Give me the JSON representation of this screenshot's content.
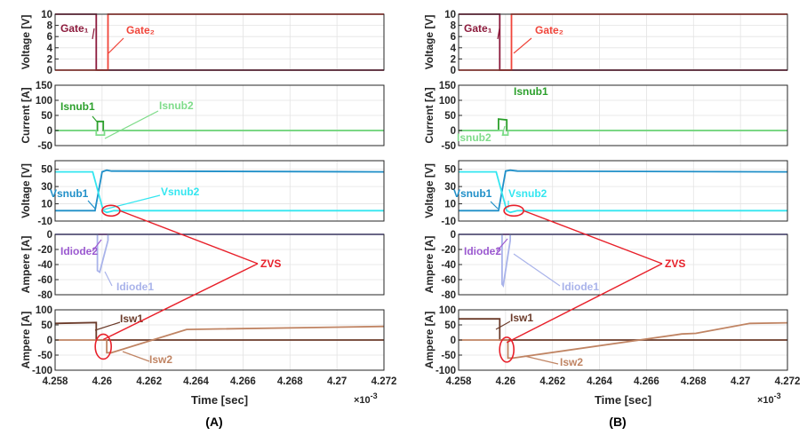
{
  "chart_data": [
    {
      "caption": "(A)",
      "xlabel": "Time [sec]",
      "x_exponent": "×10",
      "x_exponent_power": "-3",
      "xlim": [
        4.258,
        4.272
      ],
      "x_ticks": [
        "4.258",
        "4.26",
        "4.262",
        "4.264",
        "4.266",
        "4.268",
        "4.27",
        "4.272"
      ],
      "zvs_label": "ZVS",
      "panels": [
        {
          "type": "line",
          "ylabel": "Voltage [V]",
          "ylim": [
            0,
            10
          ],
          "y_ticks": [
            0,
            2,
            4,
            6,
            8,
            10
          ],
          "series": [
            {
              "name": "Gate₁",
              "color": "#8c1a3c",
              "x": [
                4.258,
                4.25975,
                4.25975,
                4.272
              ],
              "y": [
                10,
                10,
                0,
                0
              ]
            },
            {
              "name": "Gate₂",
              "color": "#f0453a",
              "x": [
                4.258,
                4.26025,
                4.26025,
                4.272
              ],
              "y": [
                0,
                0,
                10,
                10
              ]
            }
          ],
          "annotations": [
            {
              "text": "Gate₁",
              "color": "#8c1a3c"
            },
            {
              "text": "Gate₂",
              "color": "#f0453a"
            }
          ]
        },
        {
          "type": "line",
          "ylabel": "Current [A]",
          "ylim": [
            -50,
            150
          ],
          "y_ticks": [
            -50,
            0,
            50,
            100,
            150
          ],
          "series": [
            {
              "name": "Isnub1",
              "color": "#2ca02c",
              "x": [
                4.258,
                4.2598,
                4.2598,
                4.26005,
                4.26005,
                4.272
              ],
              "y": [
                0,
                0,
                30,
                30,
                0,
                0
              ]
            },
            {
              "name": "Isnub2",
              "color": "#7fdc8a",
              "x": [
                4.258,
                4.25975,
                4.25975,
                4.2601,
                4.2601,
                4.272
              ],
              "y": [
                0,
                0,
                -15,
                -15,
                0,
                0
              ]
            }
          ],
          "annotations": [
            {
              "text": "Isnub1",
              "color": "#2ca02c"
            },
            {
              "text": "Isnub2",
              "color": "#7fdc8a"
            }
          ]
        },
        {
          "type": "line",
          "ylabel": "Voltage [V]",
          "ylim": [
            -10,
            60
          ],
          "y_ticks": [
            -10,
            10,
            30,
            50
          ],
          "series": [
            {
              "name": "Vsnub1",
              "color": "#1f8fc8",
              "x": [
                4.258,
                4.2597,
                4.26,
                4.2602,
                4.2604,
                4.272
              ],
              "y": [
                2,
                2,
                47,
                49,
                48,
                47
              ]
            },
            {
              "name": "Vsnub2",
              "color": "#33e6f0",
              "x": [
                4.258,
                4.2596,
                4.26005,
                4.2602,
                4.2605,
                4.272
              ],
              "y": [
                47,
                47,
                2,
                0,
                2,
                2
              ]
            }
          ],
          "annotations": [
            {
              "text": "Vsnub1",
              "color": "#1f8fc8"
            },
            {
              "text": "Vsnub2",
              "color": "#33e6f0"
            }
          ]
        },
        {
          "type": "line",
          "ylabel": "Ampere [A]",
          "ylim": [
            -80,
            0
          ],
          "y_ticks": [
            -80,
            -60,
            -40,
            -20,
            0
          ],
          "series": [
            {
              "name": "Idiode2",
              "color": "#9b59d0",
              "x": [
                4.258,
                4.272
              ],
              "y": [
                0,
                0
              ]
            },
            {
              "name": "Idiode1",
              "color": "#a9b3ea",
              "x": [
                4.258,
                4.2598,
                4.2598,
                4.2599,
                4.26025,
                4.26025,
                4.272
              ],
              "y": [
                0,
                0,
                -48,
                -50,
                -8,
                0,
                0
              ]
            }
          ],
          "annotations": [
            {
              "text": "Idiode2",
              "color": "#9b59d0"
            },
            {
              "text": "Idiode1",
              "color": "#a9b3ea"
            }
          ]
        },
        {
          "type": "line",
          "ylabel": "Ampere [A]",
          "ylim": [
            -100,
            100
          ],
          "y_ticks": [
            -100,
            -50,
            0,
            50,
            100
          ],
          "series": [
            {
              "name": "Isw1",
              "color": "#6b3b2a",
              "x": [
                4.258,
                4.25975,
                4.25975,
                4.272
              ],
              "y": [
                55,
                58,
                0,
                0
              ]
            },
            {
              "name": "Isw2",
              "color": "#c08463",
              "x": [
                4.258,
                4.2602,
                4.2602,
                4.2604,
                4.2636,
                4.272
              ],
              "y": [
                0,
                0,
                -42,
                -42,
                35,
                45
              ]
            }
          ],
          "annotations": [
            {
              "text": "Isw1",
              "color": "#6b3b2a"
            },
            {
              "text": "Isw2",
              "color": "#c08463"
            }
          ]
        }
      ]
    },
    {
      "caption": "(B)",
      "xlabel": "Time [sec]",
      "x_exponent": "×10",
      "x_exponent_power": "-3",
      "xlim": [
        4.258,
        4.272
      ],
      "x_ticks": [
        "4.258",
        "4.26",
        "4.262",
        "4.264",
        "4.266",
        "4.268",
        "4.27",
        "4.272"
      ],
      "zvs_label": "ZVS",
      "panels": [
        {
          "type": "line",
          "ylabel": "Voltage [V]",
          "ylim": [
            0,
            10
          ],
          "y_ticks": [
            0,
            2,
            4,
            6,
            8,
            10
          ],
          "series": [
            {
              "name": "Gate₁",
              "color": "#8c1a3c",
              "x": [
                4.258,
                4.25975,
                4.25975,
                4.272
              ],
              "y": [
                10,
                10,
                0,
                0
              ]
            },
            {
              "name": "Gate₂",
              "color": "#f0453a",
              "x": [
                4.258,
                4.26025,
                4.26025,
                4.272
              ],
              "y": [
                0,
                0,
                10,
                10
              ]
            }
          ],
          "annotations": [
            {
              "text": "Gate₁",
              "color": "#8c1a3c"
            },
            {
              "text": "Gate₂",
              "color": "#f0453a"
            }
          ]
        },
        {
          "type": "line",
          "ylabel": "Current [A]",
          "ylim": [
            -50,
            150
          ],
          "y_ticks": [
            -50,
            0,
            50,
            100,
            150
          ],
          "series": [
            {
              "name": "Isnub1",
              "color": "#2ca02c",
              "x": [
                4.258,
                4.2597,
                4.2597,
                4.26005,
                4.26005,
                4.272
              ],
              "y": [
                0,
                0,
                38,
                35,
                0,
                0
              ]
            },
            {
              "name": "Isnub2",
              "color": "#7fdc8a",
              "x": [
                4.258,
                4.2599,
                4.2599,
                4.2601,
                4.2601,
                4.272
              ],
              "y": [
                0,
                0,
                -15,
                -15,
                0,
                0
              ]
            }
          ],
          "annotations": [
            {
              "text": "Isnub1",
              "color": "#2ca02c"
            },
            {
              "text": "Isnub2",
              "color": "#7fdc8a"
            }
          ]
        },
        {
          "type": "line",
          "ylabel": "Voltage [V]",
          "ylim": [
            -10,
            60
          ],
          "y_ticks": [
            -10,
            10,
            30,
            50
          ],
          "series": [
            {
              "name": "Vsnub1",
              "color": "#1f8fc8",
              "x": [
                4.258,
                4.2597,
                4.26,
                4.2602,
                4.2605,
                4.272
              ],
              "y": [
                2,
                2,
                48,
                49,
                48,
                47
              ]
            },
            {
              "name": "Vsnub2",
              "color": "#33e6f0",
              "x": [
                4.258,
                4.2596,
                4.26005,
                4.2602,
                4.2605,
                4.272
              ],
              "y": [
                47,
                47,
                2,
                0,
                2,
                2
              ]
            }
          ],
          "annotations": [
            {
              "text": "Vsnub1",
              "color": "#1f8fc8"
            },
            {
              "text": "Vsnub2",
              "color": "#33e6f0"
            }
          ]
        },
        {
          "type": "line",
          "ylabel": "Ampere [A]",
          "ylim": [
            -80,
            0
          ],
          "y_ticks": [
            -80,
            -60,
            -40,
            -20,
            0
          ],
          "series": [
            {
              "name": "Idiode2",
              "color": "#9b59d0",
              "x": [
                4.258,
                4.272
              ],
              "y": [
                0,
                0
              ]
            },
            {
              "name": "Idiode1",
              "color": "#a9b3ea",
              "x": [
                4.258,
                4.25985,
                4.25985,
                4.2599,
                4.2602,
                4.2602,
                4.272
              ],
              "y": [
                0,
                0,
                -66,
                -68,
                -8,
                0,
                0
              ]
            }
          ],
          "annotations": [
            {
              "text": "Idiode2",
              "color": "#9b59d0"
            },
            {
              "text": "Idiode1",
              "color": "#a9b3ea"
            }
          ]
        },
        {
          "type": "line",
          "ylabel": "Ampere [A]",
          "ylim": [
            -100,
            100
          ],
          "y_ticks": [
            -100,
            -50,
            0,
            50,
            100
          ],
          "series": [
            {
              "name": "Isw1",
              "color": "#6b3b2a",
              "x": [
                4.258,
                4.25975,
                4.25975,
                4.272
              ],
              "y": [
                70,
                70,
                0,
                0
              ]
            },
            {
              "name": "Isw2",
              "color": "#c08463",
              "x": [
                4.258,
                4.2601,
                4.2601,
                4.2603,
                4.2675,
                4.2681,
                4.2704,
                4.272
              ],
              "y": [
                0,
                0,
                -60,
                -60,
                20,
                22,
                55,
                57
              ]
            }
          ],
          "annotations": [
            {
              "text": "Isw1",
              "color": "#6b3b2a"
            },
            {
              "text": "Isw2",
              "color": "#c08463"
            }
          ]
        }
      ]
    }
  ]
}
